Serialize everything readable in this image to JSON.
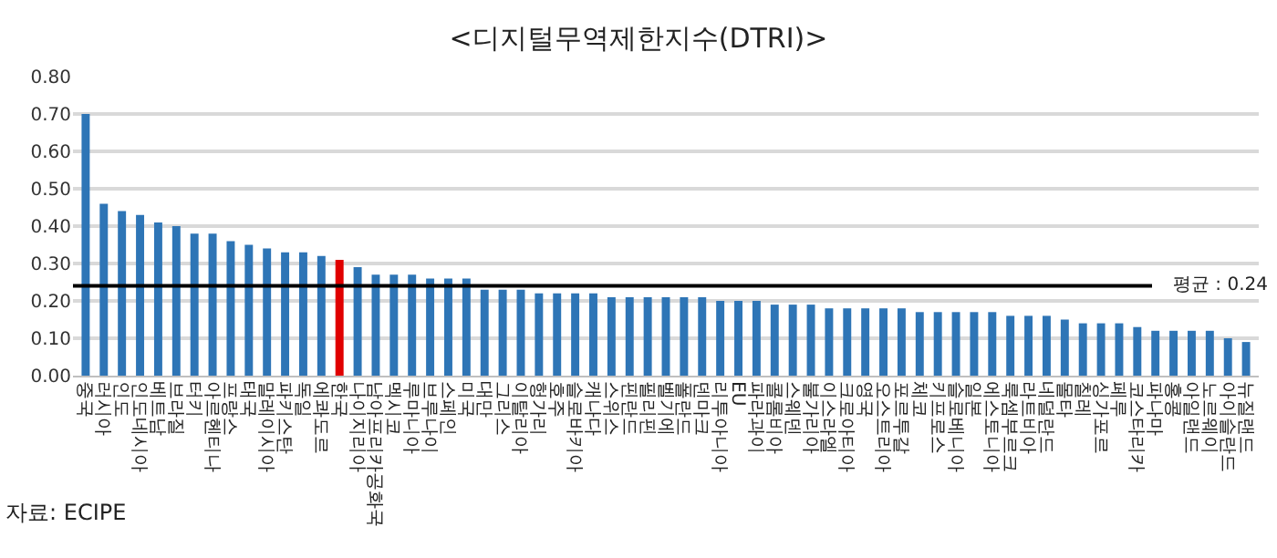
{
  "chart_data": {
    "type": "bar",
    "title": "<디지털무역제한지수(DTRI)>",
    "categories": [
      "중국",
      "러시아",
      "인도",
      "인도네시아",
      "베트남",
      "브라질",
      "터키",
      "아르헨티나",
      "프랑스",
      "태국",
      "말레이시아",
      "파키스탄",
      "독일",
      "에콰도르",
      "한국",
      "나이지리아",
      "남아프리카공화국",
      "멕시코",
      "루마니아",
      "브루나이",
      "스페인",
      "미국",
      "대만",
      "그리스",
      "이탈리아",
      "헝가리",
      "호주",
      "슬로바키아",
      "캐나다",
      "스위스",
      "핀란드",
      "필리핀",
      "벨기에",
      "폴란드",
      "덴마크",
      "리투아니아",
      "EU",
      "파라과이",
      "콜롬비아",
      "스웨덴",
      "불가리아",
      "이스라엘",
      "크로아티아",
      "영국",
      "오스트리아",
      "포르투갈",
      "체코",
      "키프로스",
      "슬로베니아",
      "일본",
      "에스토니아",
      "룩셈부르크",
      "라트비아",
      "네덜란드",
      "몰타",
      "칠레",
      "싱가포르",
      "페루",
      "코스타리카",
      "파나마",
      "홍콩",
      "아일랜드",
      "노르웨이",
      "아이슬란드",
      "뉴질랜드"
    ],
    "values": [
      0.7,
      0.46,
      0.44,
      0.43,
      0.41,
      0.4,
      0.38,
      0.38,
      0.36,
      0.35,
      0.34,
      0.33,
      0.33,
      0.32,
      0.31,
      0.29,
      0.27,
      0.27,
      0.27,
      0.26,
      0.26,
      0.26,
      0.23,
      0.23,
      0.23,
      0.22,
      0.22,
      0.22,
      0.22,
      0.21,
      0.21,
      0.21,
      0.21,
      0.21,
      0.21,
      0.2,
      0.2,
      0.2,
      0.19,
      0.19,
      0.19,
      0.18,
      0.18,
      0.18,
      0.18,
      0.18,
      0.17,
      0.17,
      0.17,
      0.17,
      0.17,
      0.16,
      0.16,
      0.16,
      0.15,
      0.14,
      0.14,
      0.14,
      0.13,
      0.12,
      0.12,
      0.12,
      0.12,
      0.1,
      0.09
    ],
    "colors": [
      "#2e75b6",
      "#2e75b6",
      "#2e75b6",
      "#2e75b6",
      "#2e75b6",
      "#2e75b6",
      "#2e75b6",
      "#2e75b6",
      "#2e75b6",
      "#2e75b6",
      "#2e75b6",
      "#2e75b6",
      "#2e75b6",
      "#2e75b6",
      "#e00000",
      "#2e75b6",
      "#2e75b6",
      "#2e75b6",
      "#2e75b6",
      "#2e75b6",
      "#2e75b6",
      "#2e75b6",
      "#2e75b6",
      "#2e75b6",
      "#2e75b6",
      "#2e75b6",
      "#2e75b6",
      "#2e75b6",
      "#2e75b6",
      "#2e75b6",
      "#2e75b6",
      "#2e75b6",
      "#2e75b6",
      "#2e75b6",
      "#2e75b6",
      "#2e75b6",
      "#2e75b6",
      "#2e75b6",
      "#2e75b6",
      "#2e75b6",
      "#2e75b6",
      "#2e75b6",
      "#2e75b6",
      "#2e75b6",
      "#2e75b6",
      "#2e75b6",
      "#2e75b6",
      "#2e75b6",
      "#2e75b6",
      "#2e75b6",
      "#2e75b6",
      "#2e75b6",
      "#2e75b6",
      "#2e75b6",
      "#2e75b6",
      "#2e75b6",
      "#2e75b6",
      "#2e75b6",
      "#2e75b6",
      "#2e75b6",
      "#2e75b6",
      "#2e75b6",
      "#2e75b6",
      "#2e75b6",
      "#2e75b6"
    ],
    "ylim": [
      0,
      0.8
    ],
    "yticks": [
      {
        "value": 0,
        "label": "0.00"
      },
      {
        "value": 0.1,
        "label": "0.10"
      },
      {
        "value": 0.2,
        "label": "0.20"
      },
      {
        "value": 0.3,
        "label": "0.30"
      },
      {
        "value": 0.4,
        "label": "0.40"
      },
      {
        "value": 0.5,
        "label": "0.50"
      },
      {
        "value": 0.6,
        "label": "0.60"
      },
      {
        "value": 0.7,
        "label": "0.70"
      },
      {
        "value": 0.8,
        "label": "0.80"
      }
    ],
    "grid": "y",
    "ref_lines": [
      {
        "axis": "y",
        "value": 0.24,
        "label": "평균 : 0.24",
        "color": "#000000",
        "line_style": "solid"
      }
    ],
    "annotations": [
      "자료: ECIPE"
    ]
  }
}
